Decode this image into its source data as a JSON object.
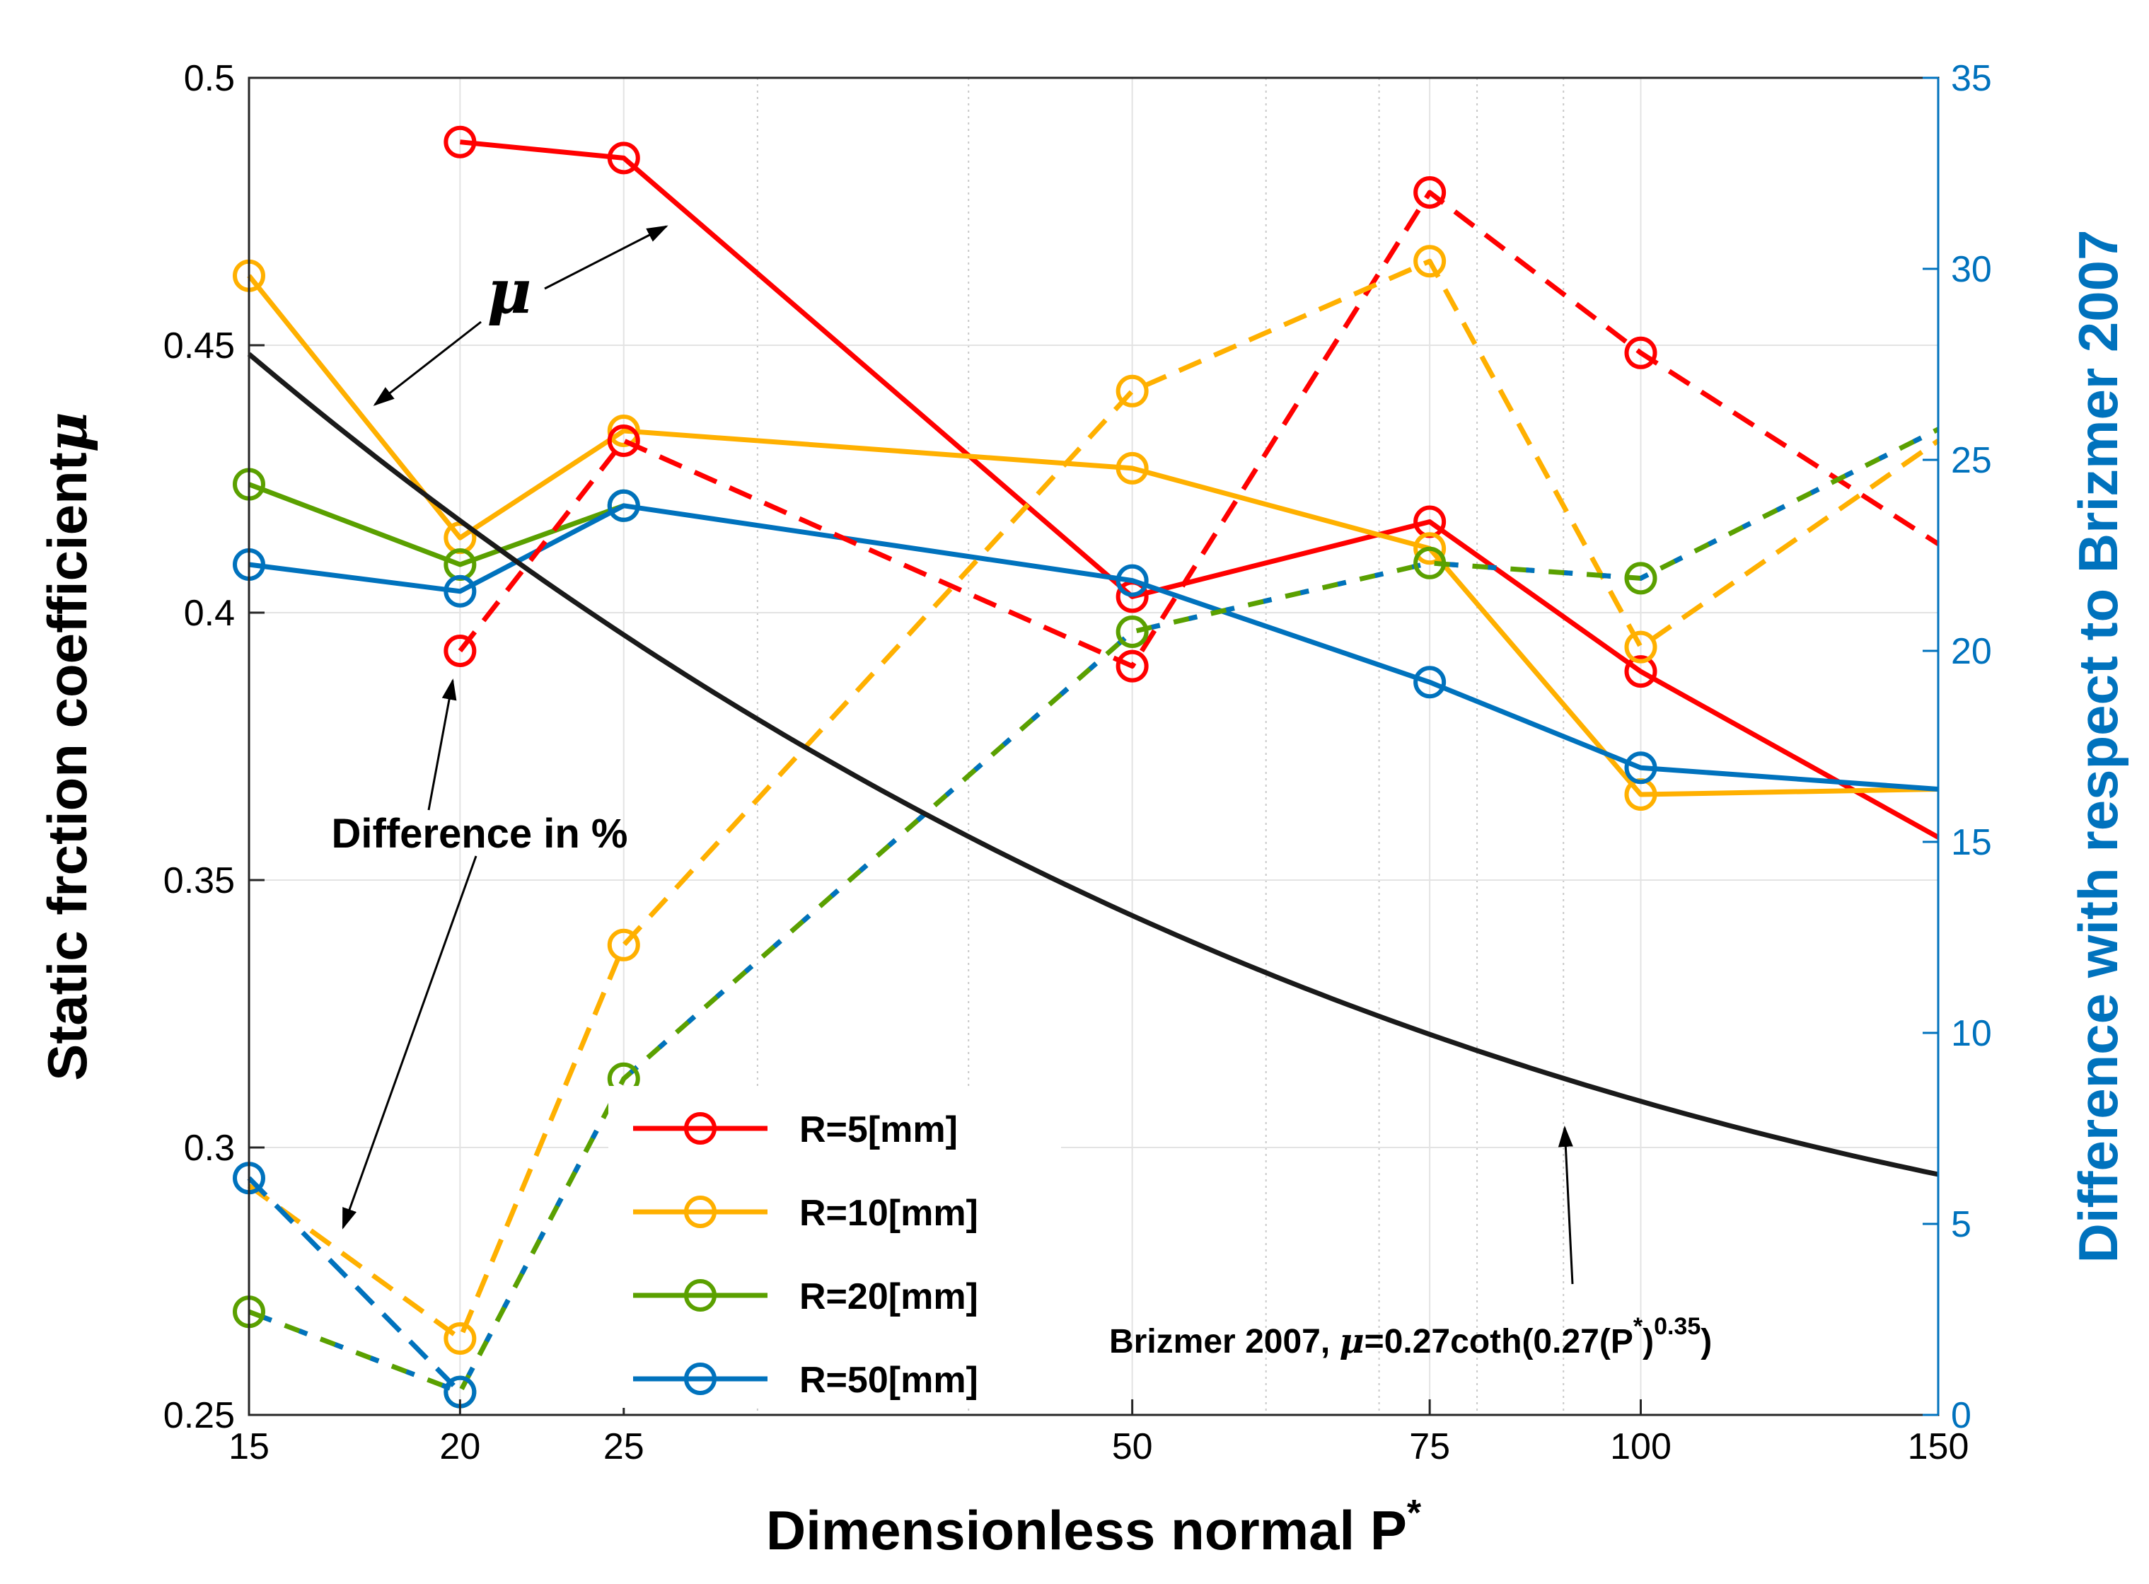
{
  "chart_data": {
    "type": "line",
    "xlabel": "Dimensionless normal P",
    "xlabel_sup": "*",
    "ylabel": "Static frction coefficient",
    "ylabel_symbol": "μ",
    "y2label": "Difference with respect to Brizmer 2007",
    "xscale": "log",
    "xlim": [
      15,
      150
    ],
    "ylim": [
      0.25,
      0.5
    ],
    "y2lim": [
      0,
      35
    ],
    "xticks": [
      15,
      20,
      25,
      50,
      75,
      100,
      150
    ],
    "xtick_labels": [
      "15",
      "20",
      "25",
      "50",
      "75",
      "100",
      "150"
    ],
    "yticks": [
      0.25,
      0.3,
      0.35,
      0.4,
      0.45,
      0.5
    ],
    "ytick_labels": [
      "0.25",
      "0.3",
      "0.35",
      "0.4",
      "0.45",
      "0.5"
    ],
    "y2ticks": [
      0,
      5,
      10,
      15,
      20,
      25,
      30,
      35
    ],
    "y2tick_labels": [
      "0",
      "5",
      "10",
      "15",
      "20",
      "25",
      "30",
      "35"
    ],
    "grid": true,
    "legend_position": "lower-center",
    "series": [
      {
        "name": "R=5[mm]",
        "color": "#ff0000",
        "axis": "left",
        "style": "solid",
        "x": [
          20,
          25,
          50,
          75,
          100,
          150
        ],
        "y": [
          0.488,
          0.485,
          0.403,
          0.417,
          0.389,
          0.358
        ],
        "markers": [
          true,
          true,
          true,
          true,
          true,
          false
        ]
      },
      {
        "name": "R=10[mm]",
        "color": "#ffb000",
        "axis": "left",
        "style": "solid",
        "x": [
          15,
          20,
          25,
          50,
          75,
          100,
          150
        ],
        "y": [
          0.463,
          0.414,
          0.434,
          0.427,
          0.412,
          0.366,
          0.367
        ],
        "markers": [
          true,
          true,
          true,
          true,
          true,
          true,
          false
        ]
      },
      {
        "name": "R=20[mm]",
        "color": "#5aa000",
        "axis": "left",
        "style": "solid",
        "x": [
          15,
          20,
          25
        ],
        "y": [
          0.424,
          0.409,
          0.42
        ],
        "markers": [
          true,
          true,
          true
        ]
      },
      {
        "name": "R=50[mm]",
        "color": "#0072bd",
        "axis": "left",
        "style": "solid",
        "x": [
          15,
          20,
          25,
          50,
          75,
          100,
          150
        ],
        "y": [
          0.409,
          0.404,
          0.42,
          0.406,
          0.387,
          0.371,
          0.367
        ],
        "markers": [
          true,
          true,
          true,
          true,
          true,
          true,
          false
        ]
      },
      {
        "name": "R=5[mm] difference",
        "color": "#ff0000",
        "axis": "right",
        "style": "dashed",
        "x": [
          20,
          25,
          50,
          75,
          100,
          150
        ],
        "y": [
          20.0,
          25.5,
          19.6,
          32.0,
          27.8,
          22.8
        ],
        "markers": [
          true,
          true,
          true,
          true,
          true,
          false
        ]
      },
      {
        "name": "R=10[mm] difference",
        "color": "#ffb000",
        "axis": "right",
        "style": "dashed",
        "x": [
          15,
          20,
          25,
          50,
          75,
          100,
          150
        ],
        "y": [
          6.0,
          2.0,
          12.3,
          26.8,
          30.2,
          20.1,
          25.5
        ],
        "markers": [
          false,
          true,
          true,
          true,
          true,
          true,
          false
        ]
      },
      {
        "name": "R=20[mm] difference",
        "color": "#5aa000",
        "axis": "right",
        "style": "dashed",
        "stripe": "#0072bd",
        "x": [
          15,
          20,
          25,
          50,
          75,
          100,
          150
        ],
        "y": [
          2.7,
          0.6,
          8.8,
          20.5,
          22.3,
          21.9,
          25.8
        ],
        "markers": [
          true,
          true,
          true,
          true,
          true,
          true,
          false
        ]
      },
      {
        "name": "R=50[mm] difference",
        "color": "#0072bd",
        "axis": "right",
        "style": "dashed",
        "x": [
          15,
          20
        ],
        "y": [
          6.2,
          0.6
        ],
        "markers": [
          true,
          true
        ]
      },
      {
        "name": "Brizmer 2007",
        "color": "#1a1a1a",
        "axis": "left",
        "style": "solid",
        "formula": "0.27coth(0.27(P*)^0.35)",
        "x": [
          15,
          150
        ],
        "markers": []
      }
    ],
    "annotations": {
      "mu_label": "μ",
      "difference_label": "Difference in %",
      "brizmer_prefix": "Brizmer 2007, ",
      "brizmer_mu": "μ",
      "brizmer_eq": "=0.27coth(0.27(P",
      "brizmer_sup1": "*",
      "brizmer_close": ")",
      "brizmer_sup2": "0.35",
      "brizmer_end": ")"
    }
  }
}
